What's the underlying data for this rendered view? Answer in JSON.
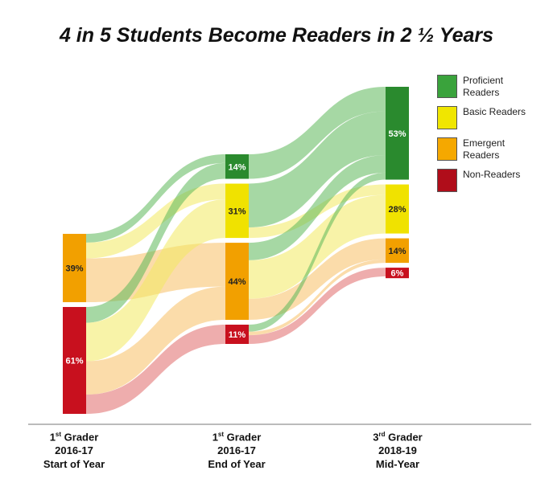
{
  "title": "4 in 5 Students Become Readers in 2 ½ Years",
  "colors": {
    "proficient": "#2a8a2e",
    "basic": "#f0e200",
    "emergent": "#f2a000",
    "non": "#c8101e",
    "proficient_flow": "#5cb85a",
    "basic_flow": "#f2ea60",
    "emergent_flow": "#f7c064",
    "non_flow": "#e06a6a"
  },
  "legend": [
    {
      "key": "proficient",
      "label": "Proficient Readers",
      "color": "#3aa33c"
    },
    {
      "key": "basic",
      "label": "Basic Readers",
      "color": "#f0e600"
    },
    {
      "key": "emergent",
      "label": "Emergent Readers",
      "color": "#f5a800"
    },
    {
      "key": "non",
      "label": "Non-Readers",
      "color": "#b00d1a"
    }
  ],
  "columns": [
    {
      "ord": "1",
      "sup": "st",
      "rest": " Grader",
      "year": "2016-17",
      "time": "Start of Year"
    },
    {
      "ord": "1",
      "sup": "st",
      "rest": " Grader",
      "year": "2016-17",
      "time": "End of Year"
    },
    {
      "ord": "3",
      "sup": "rd",
      "rest": " Grader",
      "year": "2018-19",
      "time": "Mid-Year"
    }
  ],
  "chart_data": {
    "type": "sankey",
    "title": "4 in 5 Students Become Readers in 2 ½ Years",
    "stages": [
      "1st Grader 2016-17 Start of Year",
      "1st Grader 2016-17 End of Year",
      "3rd Grader 2018-19 Mid-Year"
    ],
    "categories": [
      "Proficient Readers",
      "Basic Readers",
      "Emergent Readers",
      "Non-Readers"
    ],
    "nodes": [
      {
        "stage": 0,
        "category": "Emergent Readers",
        "value": 39,
        "label": "39%"
      },
      {
        "stage": 0,
        "category": "Non-Readers",
        "value": 61,
        "label": "61%"
      },
      {
        "stage": 1,
        "category": "Proficient Readers",
        "value": 14,
        "label": "14%"
      },
      {
        "stage": 1,
        "category": "Basic Readers",
        "value": 31,
        "label": "31%"
      },
      {
        "stage": 1,
        "category": "Emergent Readers",
        "value": 44,
        "label": "44%"
      },
      {
        "stage": 1,
        "category": "Non-Readers",
        "value": 11,
        "label": "11%"
      },
      {
        "stage": 2,
        "category": "Proficient Readers",
        "value": 53,
        "label": "53%"
      },
      {
        "stage": 2,
        "category": "Basic Readers",
        "value": 28,
        "label": "28%"
      },
      {
        "stage": 2,
        "category": "Emergent Readers",
        "value": 14,
        "label": "14%"
      },
      {
        "stage": 2,
        "category": "Non-Readers",
        "value": 6,
        "label": "6%"
      }
    ],
    "flows": [
      {
        "from_stage": 0,
        "from": "Emergent Readers",
        "to": "Proficient Readers",
        "value": 5
      },
      {
        "from_stage": 0,
        "from": "Emergent Readers",
        "to": "Basic Readers",
        "value": 9
      },
      {
        "from_stage": 0,
        "from": "Emergent Readers",
        "to": "Emergent Readers",
        "value": 25
      },
      {
        "from_stage": 0,
        "from": "Non-Readers",
        "to": "Proficient Readers",
        "value": 9
      },
      {
        "from_stage": 0,
        "from": "Non-Readers",
        "to": "Basic Readers",
        "value": 22
      },
      {
        "from_stage": 0,
        "from": "Non-Readers",
        "to": "Emergent Readers",
        "value": 19
      },
      {
        "from_stage": 0,
        "from": "Non-Readers",
        "to": "Non-Readers",
        "value": 11
      },
      {
        "from_stage": 1,
        "from": "Proficient Readers",
        "to": "Proficient Readers",
        "value": 14
      },
      {
        "from_stage": 1,
        "from": "Basic Readers",
        "to": "Proficient Readers",
        "value": 25
      },
      {
        "from_stage": 1,
        "from": "Basic Readers",
        "to": "Basic Readers",
        "value": 6
      },
      {
        "from_stage": 1,
        "from": "Emergent Readers",
        "to": "Proficient Readers",
        "value": 10
      },
      {
        "from_stage": 1,
        "from": "Emergent Readers",
        "to": "Basic Readers",
        "value": 22
      },
      {
        "from_stage": 1,
        "from": "Emergent Readers",
        "to": "Emergent Readers",
        "value": 12
      },
      {
        "from_stage": 1,
        "from": "Non-Readers",
        "to": "Proficient Readers",
        "value": 4
      },
      {
        "from_stage": 1,
        "from": "Non-Readers",
        "to": "Emergent Readers",
        "value": 2
      },
      {
        "from_stage": 1,
        "from": "Non-Readers",
        "to": "Non-Readers",
        "value": 5
      }
    ]
  }
}
